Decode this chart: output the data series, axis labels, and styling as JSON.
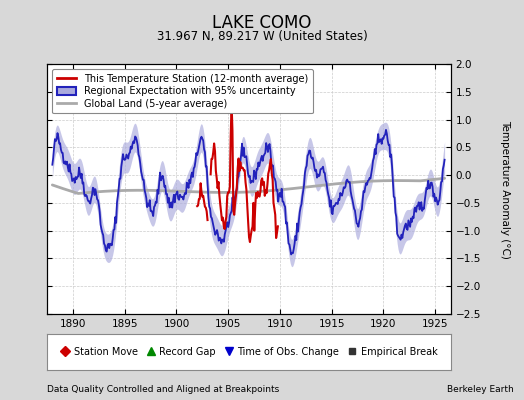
{
  "title": "LAKE COMO",
  "subtitle": "31.967 N, 89.217 W (United States)",
  "xlabel_left": "Data Quality Controlled and Aligned at Breakpoints",
  "xlabel_right": "Berkeley Earth",
  "ylabel": "Temperature Anomaly (°C)",
  "xlim": [
    1887.5,
    1926.5
  ],
  "ylim": [
    -2.5,
    2.0
  ],
  "yticks": [
    -2.5,
    -2.0,
    -1.5,
    -1.0,
    -0.5,
    0.0,
    0.5,
    1.0,
    1.5,
    2.0
  ],
  "xticks": [
    1890,
    1895,
    1900,
    1905,
    1910,
    1915,
    1920,
    1925
  ],
  "bg_color": "#d8d8d8",
  "plot_bg_color": "#ffffff",
  "grid_color": "#cccccc",
  "regional_color": "#2222bb",
  "regional_fill_color": "#aaaadd",
  "station_color": "#cc0000",
  "global_color": "#aaaaaa",
  "legend_entries": [
    "This Temperature Station (12-month average)",
    "Regional Expectation with 95% uncertainty",
    "Global Land (5-year average)"
  ],
  "bottom_legend": [
    {
      "marker": "D",
      "color": "#cc0000",
      "label": "Station Move"
    },
    {
      "marker": "^",
      "color": "#008800",
      "label": "Record Gap"
    },
    {
      "marker": "v",
      "color": "#0000cc",
      "label": "Time of Obs. Change"
    },
    {
      "marker": "s",
      "color": "#333333",
      "label": "Empirical Break"
    }
  ]
}
